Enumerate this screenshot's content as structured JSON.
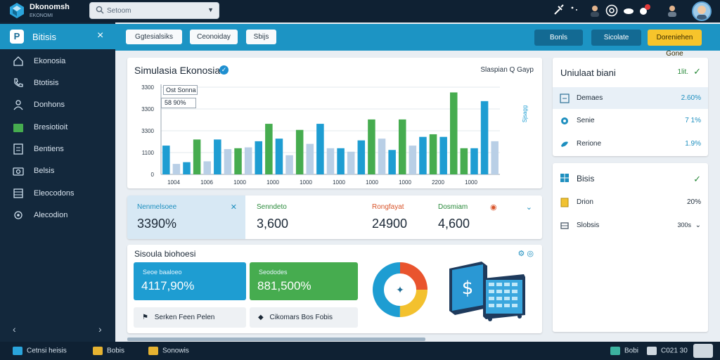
{
  "app": {
    "brand": "Dkonomsh",
    "brand_sub": "EKONOMI",
    "search_placeholder": "Setoom"
  },
  "sidebar": {
    "title": "Bitisis",
    "items": [
      {
        "label": "Ekonosia",
        "icon": "home-icon"
      },
      {
        "label": "Btotisis",
        "icon": "phone-icon"
      },
      {
        "label": "Donhons",
        "icon": "user-icon"
      },
      {
        "label": "Bresiotioit",
        "icon": "folder-icon"
      },
      {
        "label": "Bentiens",
        "icon": "document-icon"
      },
      {
        "label": "Belsis",
        "icon": "camera-icon"
      },
      {
        "label": "Eleocodons",
        "icon": "grid-icon"
      },
      {
        "label": "Alecodion",
        "icon": "settings-icon"
      }
    ]
  },
  "actionbar": {
    "pills": [
      "Ggtesialsiks",
      "Ceonoiday",
      "Sbijs"
    ],
    "btn1": "Bonls",
    "btn2": "Sicolate",
    "btn3": "Doreniehen Gone"
  },
  "chart_card": {
    "title": "Simulasia Ekonosia",
    "tools": "Slaspian  Q  Gayp",
    "legend1": "Ost Sonna",
    "legend2": "58  90%"
  },
  "chart_data": {
    "type": "bar",
    "title": "Simulasia Ekonosia",
    "y_ticks": [
      "3300",
      "3300",
      "3300",
      "1100",
      "0"
    ],
    "x_ticks": [
      "1004",
      "1006",
      "1000",
      "1000",
      "1000",
      "1000",
      "1000",
      "1000",
      "2200",
      "1000"
    ],
    "side_label": "Sjsagg",
    "grid": true,
    "bars": [
      {
        "v": 0.33,
        "c": "#1e9dd2"
      },
      {
        "v": 0.12,
        "c": "#b9cfe6"
      },
      {
        "v": 0.14,
        "c": "#1e9dd2"
      },
      {
        "v": 0.4,
        "c": "#46ac4f"
      },
      {
        "v": 0.15,
        "c": "#b9cfe6"
      },
      {
        "v": 0.4,
        "c": "#1e9dd2"
      },
      {
        "v": 0.29,
        "c": "#b9cfe6"
      },
      {
        "v": 0.3,
        "c": "#46ac4f"
      },
      {
        "v": 0.31,
        "c": "#b9cfe6"
      },
      {
        "v": 0.38,
        "c": "#1e9dd2"
      },
      {
        "v": 0.58,
        "c": "#46ac4f"
      },
      {
        "v": 0.41,
        "c": "#1e9dd2"
      },
      {
        "v": 0.22,
        "c": "#b9cfe6"
      },
      {
        "v": 0.51,
        "c": "#46ac4f"
      },
      {
        "v": 0.35,
        "c": "#b9cfe6"
      },
      {
        "v": 0.58,
        "c": "#1e9dd2"
      },
      {
        "v": 0.3,
        "c": "#b9cfe6"
      },
      {
        "v": 0.3,
        "c": "#1e9dd2"
      },
      {
        "v": 0.26,
        "c": "#b9cfe6"
      },
      {
        "v": 0.39,
        "c": "#1e9dd2"
      },
      {
        "v": 0.63,
        "c": "#46ac4f"
      },
      {
        "v": 0.41,
        "c": "#b9cfe6"
      },
      {
        "v": 0.28,
        "c": "#1e9dd2"
      },
      {
        "v": 0.63,
        "c": "#46ac4f"
      },
      {
        "v": 0.33,
        "c": "#b9cfe6"
      },
      {
        "v": 0.43,
        "c": "#1e9dd2"
      },
      {
        "v": 0.46,
        "c": "#46ac4f"
      },
      {
        "v": 0.43,
        "c": "#1e9dd2"
      },
      {
        "v": 0.94,
        "c": "#46ac4f"
      },
      {
        "v": 0.3,
        "c": "#46ac4f"
      },
      {
        "v": 0.3,
        "c": "#1e9dd2"
      },
      {
        "v": 0.84,
        "c": "#1e9dd2"
      },
      {
        "v": 0.38,
        "c": "#b9cfe6"
      }
    ]
  },
  "right_panel": {
    "title": "Uniulaat biani",
    "value": "1lit.",
    "rows": [
      {
        "label": "Demaes",
        "value": "2.60%"
      },
      {
        "label": "Senie",
        "value": "7 1%"
      },
      {
        "label": "Rerione",
        "value": "1.9%"
      }
    ],
    "title2": "Bisis",
    "rows2": [
      {
        "label": "Drion",
        "value": "20%"
      },
      {
        "label": "Slobsis",
        "value": "300s"
      }
    ]
  },
  "stats": [
    {
      "label": "Nenmelsoee",
      "value": "3390%",
      "color": "#1e8fbf"
    },
    {
      "label": "Senndeto",
      "value": "3,600",
      "color": "#2a8a3b"
    },
    {
      "label": "Rongfayat",
      "value": "24900",
      "color": "#d8542a"
    },
    {
      "label": "Dosmiam",
      "value": "4,600",
      "color": "#2a8a3b"
    }
  ],
  "simulation": {
    "title": "Sisoula biohoesi",
    "tile1_label": "Seoe baaloeo",
    "tile1_value": "4117,90%",
    "tile2_label": "Seododes",
    "tile2_value": "881,500%",
    "btn1": "Serken Feen Pelen",
    "btn2": "Cikomars Bos Fobis",
    "pie": [
      0.25,
      0.25,
      0.5
    ]
  },
  "bottombar": {
    "item1": "Cetnsi heisis",
    "item2": "Bobis",
    "item3": "Sonowis",
    "right1": "Bobi",
    "right2": "C021 30"
  }
}
